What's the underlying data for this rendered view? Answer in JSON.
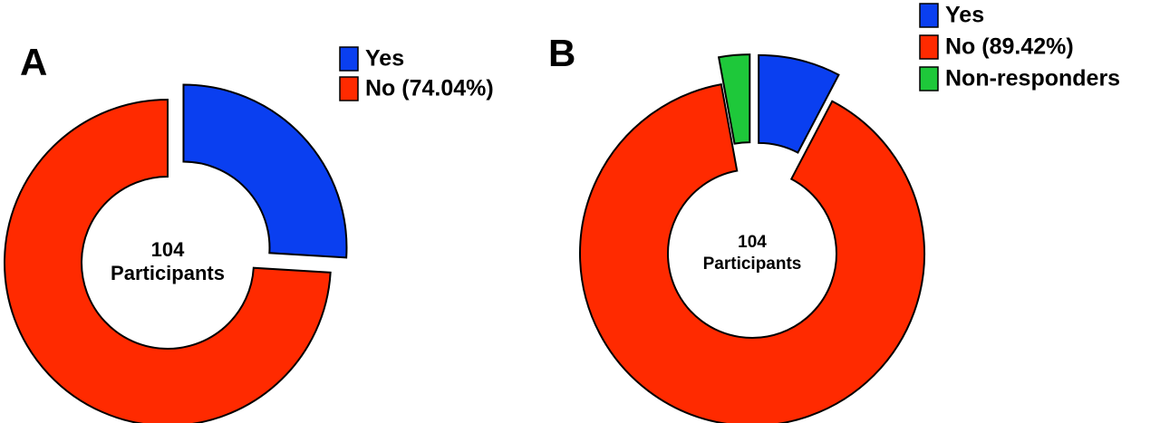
{
  "chart_data": [
    {
      "type": "pie",
      "panel_label": "A",
      "center_text": [
        "104",
        "Participants"
      ],
      "categories": [
        "Yes",
        "No (74.04%)"
      ],
      "values": [
        25.96,
        74.04
      ],
      "colors": [
        "#0a3ff0",
        "#ff2a00"
      ]
    },
    {
      "type": "pie",
      "panel_label": "B",
      "center_text": [
        "104",
        "Participants"
      ],
      "categories": [
        "Yes",
        "No (89.42%)",
        "Non-responders"
      ],
      "values": [
        7.69,
        89.42,
        2.88
      ],
      "colors": [
        "#0a3ff0",
        "#ff2a00",
        "#1ec83a"
      ]
    }
  ]
}
